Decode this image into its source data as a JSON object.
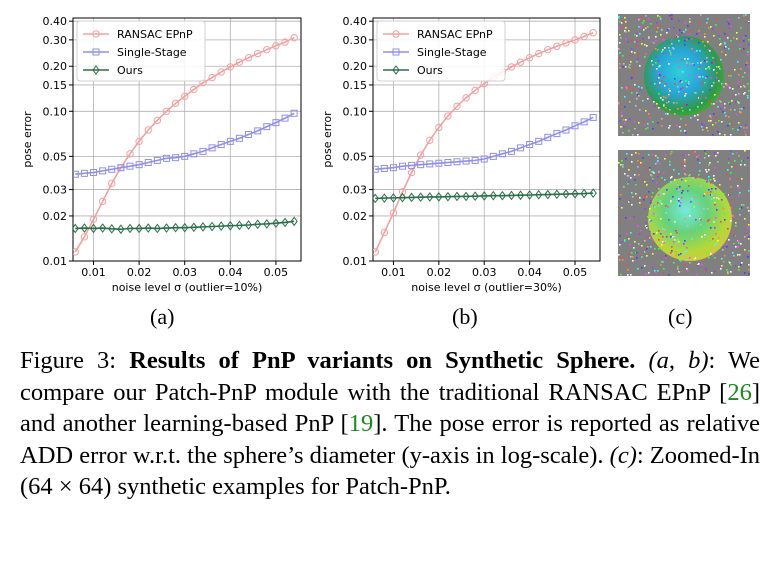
{
  "figure": {
    "subfig_labels": [
      "(a)",
      "(b)",
      "(c)"
    ],
    "caption": {
      "fig_label": "Figure 3:",
      "title": "Results of PnP variants on Synthetic Sphere.",
      "part_ab": "(a, b)",
      "text1": ": We compare our Patch-PnP module with the traditional RANSAC EPnP [",
      "ref1": "26",
      "text2": "] and another learning-based PnP [",
      "ref2": "19",
      "text3": "]. The pose error is reported as relative ADD error w.r.t. the sphere’s diameter (y-axis in log-scale).",
      "part_c": "(c)",
      "text4": ": Zoomed-In (64 × 64) synthetic examples for Patch-PnP."
    }
  },
  "chart_data": [
    {
      "type": "line",
      "ylabel": "pose error",
      "xlabel": "noise level σ (outlier=10%)",
      "yscale": "log",
      "ylim": [
        0.01,
        0.42
      ],
      "xlim": [
        0.0055,
        0.0555
      ],
      "yticks": [
        0.01,
        0.02,
        0.03,
        0.05,
        0.1,
        0.15,
        0.2,
        0.3,
        0.4
      ],
      "ytick_labels": [
        "0.01",
        "0.02",
        "0.03",
        "0.05",
        "0.10",
        "0.15",
        "0.20",
        "0.30",
        "0.40"
      ],
      "xticks": [
        0.01,
        0.02,
        0.03,
        0.04,
        0.05
      ],
      "xtick_labels": [
        "0.01",
        "0.02",
        "0.03",
        "0.04",
        "0.05"
      ],
      "grid": true,
      "legend": "top-left",
      "x": [
        0.006,
        0.008,
        0.01,
        0.012,
        0.014,
        0.016,
        0.018,
        0.02,
        0.022,
        0.024,
        0.026,
        0.028,
        0.03,
        0.032,
        0.034,
        0.036,
        0.038,
        0.04,
        0.042,
        0.044,
        0.046,
        0.048,
        0.05,
        0.052,
        0.054
      ],
      "series": [
        {
          "name": "RANSAC EPnP",
          "color": "#f4a0a0",
          "marker": "circle",
          "values": [
            0.0115,
            0.0145,
            0.019,
            0.025,
            0.033,
            0.042,
            0.052,
            0.063,
            0.075,
            0.087,
            0.1,
            0.113,
            0.126,
            0.14,
            0.155,
            0.168,
            0.183,
            0.198,
            0.213,
            0.228,
            0.243,
            0.258,
            0.274,
            0.29,
            0.31
          ]
        },
        {
          "name": "Single-Stage",
          "color": "#8f8fee",
          "marker": "square",
          "values": [
            0.038,
            0.0385,
            0.039,
            0.04,
            0.041,
            0.042,
            0.043,
            0.044,
            0.0455,
            0.047,
            0.0485,
            0.049,
            0.05,
            0.052,
            0.054,
            0.057,
            0.06,
            0.063,
            0.066,
            0.07,
            0.074,
            0.079,
            0.084,
            0.09,
            0.097
          ]
        },
        {
          "name": "Ours",
          "color": "#2a6e4a",
          "marker": "diamond",
          "values": [
            0.0165,
            0.0166,
            0.0165,
            0.0166,
            0.0164,
            0.0163,
            0.0165,
            0.0165,
            0.0166,
            0.0165,
            0.0166,
            0.0167,
            0.0167,
            0.0168,
            0.0169,
            0.017,
            0.0171,
            0.0172,
            0.0173,
            0.0174,
            0.0176,
            0.0177,
            0.0179,
            0.0181,
            0.0184
          ]
        }
      ]
    },
    {
      "type": "line",
      "ylabel": "pose error",
      "xlabel": "noise level σ (outlier=30%)",
      "yscale": "log",
      "ylim": [
        0.01,
        0.42
      ],
      "xlim": [
        0.0055,
        0.0555
      ],
      "yticks": [
        0.01,
        0.02,
        0.03,
        0.05,
        0.1,
        0.15,
        0.2,
        0.3,
        0.4
      ],
      "ytick_labels": [
        "0.01",
        "0.02",
        "0.03",
        "0.05",
        "0.10",
        "0.15",
        "0.20",
        "0.30",
        "0.40"
      ],
      "xticks": [
        0.01,
        0.02,
        0.03,
        0.04,
        0.05
      ],
      "xtick_labels": [
        "0.01",
        "0.02",
        "0.03",
        "0.04",
        "0.05"
      ],
      "grid": true,
      "legend": "top-left",
      "x": [
        0.006,
        0.008,
        0.01,
        0.012,
        0.014,
        0.016,
        0.018,
        0.02,
        0.022,
        0.024,
        0.026,
        0.028,
        0.03,
        0.032,
        0.034,
        0.036,
        0.038,
        0.04,
        0.042,
        0.044,
        0.046,
        0.048,
        0.05,
        0.052,
        0.054
      ],
      "series": [
        {
          "name": "RANSAC EPnP",
          "color": "#f4a0a0",
          "marker": "circle",
          "values": [
            0.0115,
            0.0155,
            0.021,
            0.029,
            0.039,
            0.051,
            0.064,
            0.078,
            0.093,
            0.108,
            0.123,
            0.138,
            0.153,
            0.168,
            0.183,
            0.198,
            0.213,
            0.228,
            0.243,
            0.258,
            0.272,
            0.286,
            0.3,
            0.316,
            0.335
          ]
        },
        {
          "name": "Single-Stage",
          "color": "#8f8fee",
          "marker": "square",
          "values": [
            0.041,
            0.0415,
            0.042,
            0.043,
            0.0435,
            0.044,
            0.0445,
            0.045,
            0.0455,
            0.046,
            0.0465,
            0.047,
            0.048,
            0.05,
            0.052,
            0.054,
            0.057,
            0.06,
            0.063,
            0.067,
            0.071,
            0.075,
            0.08,
            0.085,
            0.091
          ]
        },
        {
          "name": "Ours",
          "color": "#2a6e4a",
          "marker": "diamond",
          "values": [
            0.0262,
            0.0263,
            0.0264,
            0.0265,
            0.0266,
            0.0267,
            0.0268,
            0.0268,
            0.0269,
            0.027,
            0.027,
            0.0271,
            0.0272,
            0.0273,
            0.0273,
            0.0274,
            0.0275,
            0.0276,
            0.0277,
            0.0278,
            0.0279,
            0.028,
            0.0281,
            0.0282,
            0.0284
          ]
        }
      ]
    }
  ]
}
